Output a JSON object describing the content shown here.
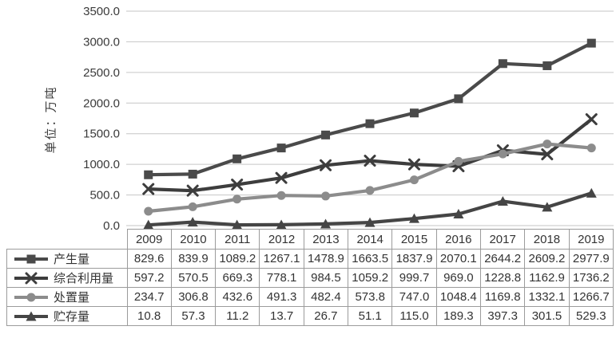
{
  "chart_data": {
    "type": "line",
    "title": "",
    "xlabel": "",
    "ylabel": "单位：万吨",
    "categories": [
      "2009",
      "2010",
      "2011",
      "2012",
      "2013",
      "2014",
      "2015",
      "2016",
      "2017",
      "2018",
      "2019"
    ],
    "series": [
      {
        "name": "产生量",
        "marker": "square",
        "color": "#4a4a4a",
        "values": [
          829.6,
          839.9,
          1089.2,
          1267.1,
          1478.9,
          1663.5,
          1837.9,
          2070.1,
          2644.2,
          2609.2,
          2977.9
        ]
      },
      {
        "name": "综合利用量",
        "marker": "x",
        "color": "#3d3d3d",
        "values": [
          597.2,
          570.5,
          669.3,
          778.1,
          984.5,
          1059.2,
          999.7,
          969.0,
          1228.8,
          1162.9,
          1736.2
        ]
      },
      {
        "name": "处置量",
        "marker": "circle",
        "color": "#8c8c8c",
        "values": [
          234.7,
          306.8,
          432.6,
          491.3,
          482.4,
          573.8,
          747.0,
          1048.4,
          1169.8,
          1332.1,
          1266.7
        ]
      },
      {
        "name": "贮存量",
        "marker": "triangle",
        "color": "#454545",
        "values": [
          10.8,
          57.3,
          11.2,
          13.7,
          26.7,
          51.1,
          115.0,
          189.3,
          397.3,
          301.5,
          529.3
        ]
      }
    ],
    "ylim": [
      0,
      3500
    ],
    "ytick_step": 500,
    "ytick_labels": [
      "0.0",
      "500.0",
      "1000.0",
      "1500.0",
      "2000.0",
      "2500.0",
      "3000.0",
      "3500.0"
    ],
    "grid": "horizontal-only",
    "legend_position": "table-rows-left",
    "value_decimals": 1
  },
  "colors": {
    "background": "#ffffff",
    "gridline": "#c6c6c6",
    "table_border": "#9b9b9b",
    "text": "#3a3a3a"
  }
}
